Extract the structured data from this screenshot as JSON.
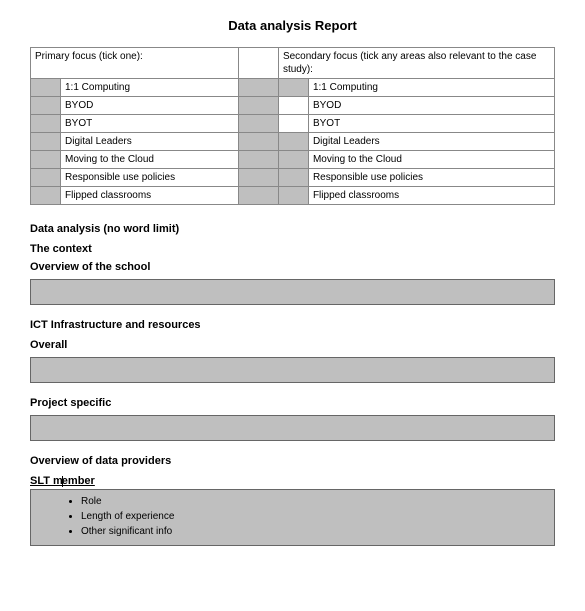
{
  "title": "Data analysis Report",
  "header": {
    "primary": "Primary focus (tick one):",
    "secondary": "Secondary focus (tick any areas also relevant to the case study):"
  },
  "focus_items": [
    "1:1 Computing",
    "BYOD",
    "BYOT",
    "Digital Leaders",
    "Moving to the Cloud",
    "Responsible use policies",
    "Flipped classrooms"
  ],
  "sections": {
    "data_analysis": "Data analysis (no word limit)",
    "context": "The context",
    "overview_school": "Overview of the school",
    "ict_infra": "ICT Infrastructure and resources",
    "overall": "Overall",
    "project_specific": "Project specific",
    "overview_providers": "Overview of data providers",
    "slt_member_pre": "SLT m",
    "slt_member_post": "ember"
  },
  "slt_bullets": [
    "Role",
    "Length of experience",
    "Other significant info"
  ],
  "colors": {
    "gray_fill": "#bfbfbf",
    "border": "#888888",
    "text": "#000000",
    "bg": "#ffffff"
  }
}
